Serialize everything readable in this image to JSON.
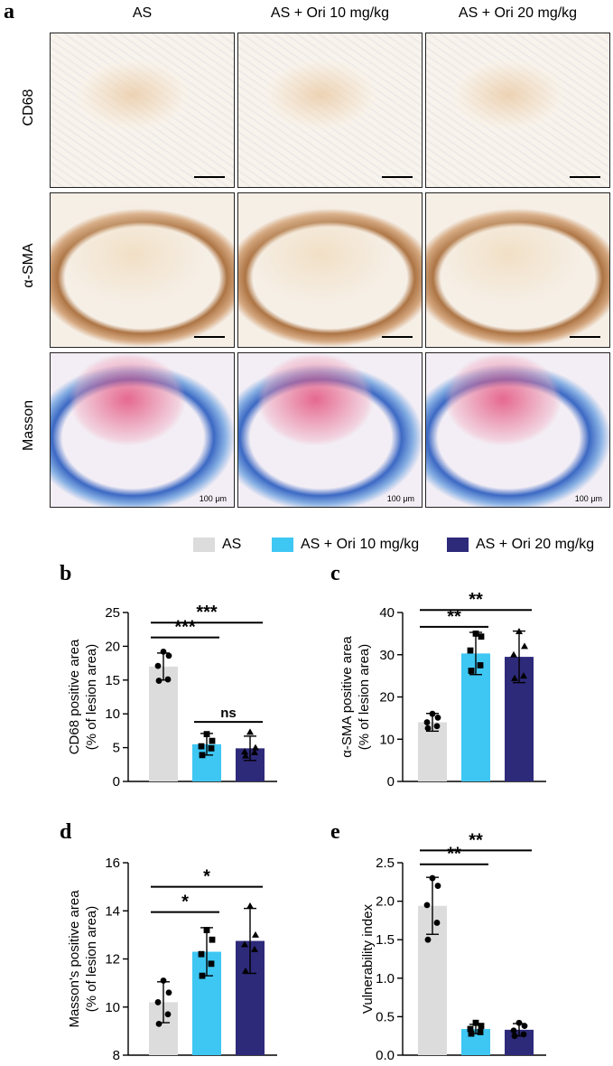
{
  "panel_labels": [
    "a",
    "b",
    "c",
    "d",
    "e"
  ],
  "columns": [
    "AS",
    "AS + Ori 10 mg/kg",
    "AS + Ori 20 mg/kg"
  ],
  "rows": [
    "CD68",
    "α-SMA",
    "Masson"
  ],
  "scale_label": "100 μm",
  "legend": [
    {
      "label": "AS",
      "color": "#dcdcdc"
    },
    {
      "label": "AS + Ori 10 mg/kg",
      "color": "#3ec7f3"
    },
    {
      "label": "AS + Ori 20 mg/kg",
      "color": "#2e2a7a"
    }
  ],
  "chart_data": [
    {
      "panel": "b",
      "type": "bar",
      "categories": [
        "AS",
        "AS + Ori 10 mg/kg",
        "AS + Ori 20 mg/kg"
      ],
      "values": [
        17.0,
        5.5,
        4.9
      ],
      "errors": [
        2.0,
        1.6,
        1.8
      ],
      "points": [
        [
          19.2,
          18.6,
          17.1,
          15.1,
          14.9
        ],
        [
          7.0,
          6.0,
          5.2,
          4.9,
          3.9
        ],
        [
          7.3,
          5.0,
          4.4,
          4.3,
          3.8
        ]
      ],
      "markers": [
        "circle",
        "square",
        "triangle"
      ],
      "ylabel": "CD68 positive area\n(% of lesion area)",
      "ylim": [
        0,
        25
      ],
      "yticks": [
        0,
        5,
        10,
        15,
        20,
        25
      ],
      "annotations": [
        {
          "text": "***",
          "from": 0,
          "to": 1,
          "y": 21.3
        },
        {
          "text": "***",
          "from": 0,
          "to": 2,
          "y": 23.5
        },
        {
          "text": "ns",
          "from": 1,
          "to": 2,
          "y": 8.8
        }
      ]
    },
    {
      "panel": "c",
      "type": "bar",
      "categories": [
        "AS",
        "AS + Ori 10 mg/kg",
        "AS + Ori 20 mg/kg"
      ],
      "values": [
        14.0,
        30.3,
        29.5
      ],
      "errors": [
        2.1,
        5.0,
        6.1
      ],
      "points": [
        [
          16.0,
          15.1,
          14.0,
          13.1,
          12.6
        ],
        [
          35.0,
          34.3,
          31.0,
          27.5,
          26.2
        ],
        [
          35.5,
          32.0,
          30.0,
          25.0,
          24.4
        ]
      ],
      "markers": [
        "circle",
        "square",
        "triangle"
      ],
      "ylabel": "α-SMA positive area\n(% of lesion area)",
      "ylim": [
        0,
        40
      ],
      "yticks": [
        0,
        10,
        20,
        30,
        40
      ],
      "annotations": [
        {
          "text": "**",
          "from": 0,
          "to": 1,
          "y": 36.6
        },
        {
          "text": "**",
          "from": 0,
          "to": 2,
          "y": 40.6
        }
      ]
    },
    {
      "panel": "d",
      "type": "bar",
      "categories": [
        "AS",
        "AS + Ori 10 mg/kg",
        "AS + Ori 20 mg/kg"
      ],
      "values": [
        10.2,
        12.3,
        12.75
      ],
      "errors": [
        0.85,
        1.0,
        1.35
      ],
      "points": [
        [
          11.1,
          10.6,
          10.2,
          9.7,
          9.3
        ],
        [
          13.2,
          12.8,
          12.2,
          11.8,
          11.3
        ],
        [
          14.2,
          13.0,
          12.6,
          12.4,
          11.5
        ]
      ],
      "markers": [
        "circle",
        "square",
        "triangle"
      ],
      "ylabel": "Masson's positive area\n(% of lesion area)",
      "ylim": [
        8,
        16
      ],
      "yticks": [
        8,
        10,
        12,
        14,
        16
      ],
      "annotations": [
        {
          "text": "*",
          "from": 0,
          "to": 1,
          "y": 13.95
        },
        {
          "text": "*",
          "from": 0,
          "to": 2,
          "y": 15.0
        }
      ]
    },
    {
      "panel": "e",
      "type": "bar",
      "categories": [
        "AS",
        "AS + Ori 10 mg/kg",
        "AS + Ori 20 mg/kg"
      ],
      "values": [
        1.94,
        0.34,
        0.33
      ],
      "errors": [
        0.37,
        0.06,
        0.08
      ],
      "points": [
        [
          2.3,
          2.2,
          1.95,
          1.72,
          1.5
        ],
        [
          0.42,
          0.38,
          0.34,
          0.3,
          0.28
        ],
        [
          0.42,
          0.38,
          0.32,
          0.27,
          0.25
        ]
      ],
      "markers": [
        "circle",
        "square",
        "circle"
      ],
      "ylabel": "Vulnerability index",
      "ylim": [
        0,
        2.5
      ],
      "yticks": [
        0.0,
        0.5,
        1.0,
        1.5,
        2.0,
        2.5
      ],
      "annotations": [
        {
          "text": "**",
          "from": 0,
          "to": 1,
          "y": 2.48
        },
        {
          "text": "**",
          "from": 0,
          "to": 2,
          "y": 2.66
        }
      ]
    }
  ]
}
